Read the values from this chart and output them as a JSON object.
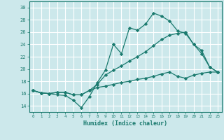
{
  "xlabel": "Humidex (Indice chaleur)",
  "xlim": [
    -0.5,
    23.5
  ],
  "ylim": [
    13,
    31
  ],
  "yticks": [
    14,
    16,
    18,
    20,
    22,
    24,
    26,
    28,
    30
  ],
  "xticks": [
    0,
    1,
    2,
    3,
    4,
    5,
    6,
    7,
    8,
    9,
    10,
    11,
    12,
    13,
    14,
    15,
    16,
    17,
    18,
    19,
    20,
    21,
    22,
    23
  ],
  "bg_color": "#cce8eb",
  "grid_color": "#ffffff",
  "line_color": "#1a7a6e",
  "line1": [
    16.5,
    16.1,
    16.0,
    15.8,
    15.7,
    14.9,
    13.7,
    15.5,
    17.8,
    19.8,
    24.0,
    22.5,
    26.7,
    26.3,
    27.3,
    29.1,
    28.6,
    27.8,
    26.2,
    25.8,
    24.0,
    23.0,
    20.3,
    19.5
  ],
  "line2": [
    16.5,
    16.1,
    16.0,
    16.2,
    16.2,
    15.8,
    15.8,
    16.5,
    17.5,
    19.0,
    19.8,
    20.5,
    21.3,
    22.0,
    22.8,
    23.8,
    24.8,
    25.5,
    25.8,
    26.0,
    24.0,
    22.5,
    20.3,
    19.5
  ],
  "line3": [
    16.5,
    16.1,
    16.0,
    16.2,
    16.2,
    15.8,
    15.8,
    16.5,
    17.0,
    17.2,
    17.5,
    17.8,
    18.0,
    18.3,
    18.5,
    18.8,
    19.2,
    19.5,
    18.8,
    18.5,
    19.0,
    19.3,
    19.5,
    19.5
  ]
}
